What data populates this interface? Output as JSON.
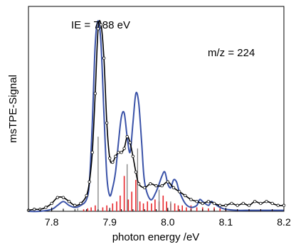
{
  "chart_data": {
    "type": "line",
    "xlabel": "photon energy /eV",
    "ylabel": "msTPE-Signal",
    "xlim": [
      7.76,
      8.2
    ],
    "ylim": [
      0,
      1.0
    ],
    "x_ticks": [
      7.8,
      7.9,
      8.0,
      8.1,
      8.2
    ],
    "x_tick_labels": [
      "7.8",
      "7.9",
      "8.0",
      "8.1",
      "8.2"
    ],
    "annotations": [
      "IE = 7.88 eV",
      "m/z = 224"
    ],
    "grid": false,
    "colors": {
      "experiment": "#000000",
      "simulation": "#3a52a8",
      "red_sticks": "#e8262b",
      "gray_sticks": "#7f7f7f"
    },
    "series": [
      {
        "x": [
          7.76,
          7.77,
          7.78,
          7.79,
          7.8,
          7.81,
          7.82,
          7.83,
          7.84,
          7.85,
          7.86,
          7.865,
          7.87,
          7.875,
          7.88,
          7.885,
          7.89,
          7.895,
          7.9,
          7.905,
          7.91,
          7.915,
          7.92,
          7.925,
          7.93,
          7.935,
          7.94,
          7.945,
          7.95,
          7.96,
          7.97,
          7.98,
          7.99,
          8.0,
          8.01,
          8.02,
          8.03,
          8.04,
          8.05,
          8.06,
          8.07,
          8.08,
          8.09,
          8.1,
          8.11,
          8.12,
          8.13,
          8.14,
          8.15,
          8.16,
          8.17,
          8.18,
          8.19,
          8.2
        ],
        "values": [
          0.005,
          0.01,
          0.01,
          0.02,
          0.04,
          0.07,
          0.07,
          0.05,
          0.03,
          0.04,
          0.08,
          0.15,
          0.3,
          0.6,
          0.93,
          0.95,
          0.78,
          0.45,
          0.27,
          0.25,
          0.28,
          0.3,
          0.3,
          0.32,
          0.38,
          0.35,
          0.28,
          0.2,
          0.14,
          0.12,
          0.14,
          0.13,
          0.13,
          0.15,
          0.12,
          0.1,
          0.08,
          0.06,
          0.05,
          0.04,
          0.05,
          0.04,
          0.03,
          0.03,
          0.04,
          0.03,
          0.04,
          0.03,
          0.05,
          0.04,
          0.05,
          0.04,
          0.03,
          0.03
        ]
      },
      {
        "x": [
          7.76,
          7.78,
          7.8,
          7.81,
          7.82,
          7.83,
          7.84,
          7.85,
          7.86,
          7.865,
          7.87,
          7.875,
          7.88,
          7.885,
          7.89,
          7.895,
          7.9,
          7.905,
          7.91,
          7.915,
          7.92,
          7.925,
          7.93,
          7.935,
          7.94,
          7.945,
          7.95,
          7.955,
          7.96,
          7.97,
          7.98,
          7.99,
          7.995,
          8.0,
          8.005,
          8.01,
          8.015,
          8.02,
          8.03,
          8.04,
          8.05,
          8.055,
          8.06,
          8.07,
          8.075,
          8.08,
          8.09,
          8.1,
          8.12,
          8.14,
          8.16,
          8.18,
          8.2
        ],
        "values": [
          0.0,
          0.0,
          0.01,
          0.03,
          0.05,
          0.03,
          0.02,
          0.03,
          0.06,
          0.15,
          0.45,
          0.85,
          0.97,
          0.85,
          0.5,
          0.18,
          0.08,
          0.12,
          0.2,
          0.35,
          0.48,
          0.5,
          0.38,
          0.3,
          0.45,
          0.6,
          0.55,
          0.35,
          0.15,
          0.06,
          0.1,
          0.18,
          0.2,
          0.14,
          0.12,
          0.16,
          0.15,
          0.1,
          0.04,
          0.02,
          0.03,
          0.06,
          0.05,
          0.03,
          0.05,
          0.04,
          0.02,
          0.01,
          0.005,
          0.005,
          0.005,
          0.005,
          0.005
        ]
      }
    ],
    "sticks": [
      {
        "color": "red",
        "x": [
          7.855,
          7.862,
          7.868,
          7.875,
          7.888,
          7.895,
          7.905,
          7.912,
          7.918,
          7.925,
          7.932,
          7.938,
          7.945,
          7.952,
          7.958,
          7.965,
          7.972,
          7.978,
          7.985,
          7.992,
          7.998,
          8.005,
          8.012,
          8.018,
          8.025,
          8.032,
          8.04,
          8.05,
          8.06,
          8.07,
          8.08,
          8.09,
          8.1,
          8.12,
          8.14,
          8.16,
          8.18
        ],
        "values": [
          0.01,
          0.015,
          0.02,
          0.03,
          0.02,
          0.03,
          0.04,
          0.05,
          0.08,
          0.18,
          0.06,
          0.1,
          0.16,
          0.05,
          0.04,
          0.05,
          0.04,
          0.06,
          0.05,
          0.08,
          0.05,
          0.04,
          0.04,
          0.03,
          0.03,
          0.02,
          0.03,
          0.02,
          0.02,
          0.015,
          0.02,
          0.015,
          0.01,
          0.01,
          0.01,
          0.01,
          0.01
        ]
      },
      {
        "color": "gray",
        "x": [
          7.8,
          7.82,
          7.845,
          7.88,
          7.93,
          7.948,
          7.985,
          8.005
        ],
        "values": [
          0.02,
          0.015,
          0.015,
          0.38,
          0.24,
          0.32,
          0.11,
          0.05
        ]
      }
    ]
  }
}
